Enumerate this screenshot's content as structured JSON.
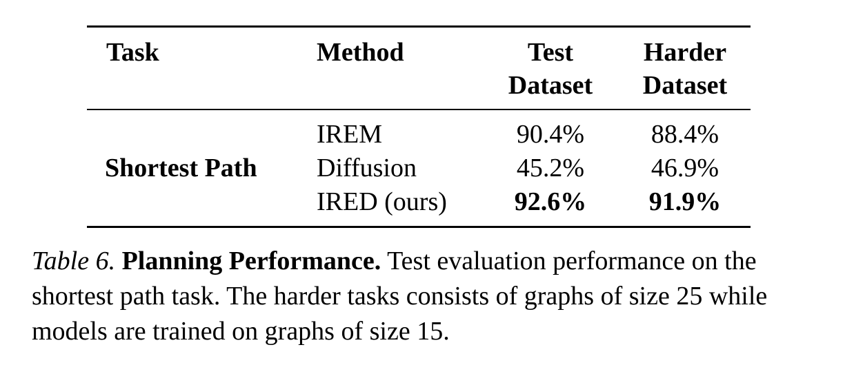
{
  "table": {
    "headers": {
      "task": "Task",
      "method": "Method",
      "test_line1": "Test",
      "test_line2": "Dataset",
      "harder_line1": "Harder",
      "harder_line2": "Dataset"
    },
    "task": "Shortest Path",
    "rows": [
      {
        "method": "IREM",
        "test": "90.4%",
        "harder": "88.4%",
        "best": false
      },
      {
        "method": "Diffusion",
        "test": "45.2%",
        "harder": "46.9%",
        "best": false
      },
      {
        "method": "IRED (ours)",
        "test": "92.6%",
        "harder": "91.9%",
        "best": true
      }
    ]
  },
  "caption": {
    "label": "Table 6.",
    "title": "Planning Performance.",
    "text": "Test evaluation performance on the shortest path task. The harder tasks consists of graphs of size 25 while models are trained on graphs of size 15."
  }
}
